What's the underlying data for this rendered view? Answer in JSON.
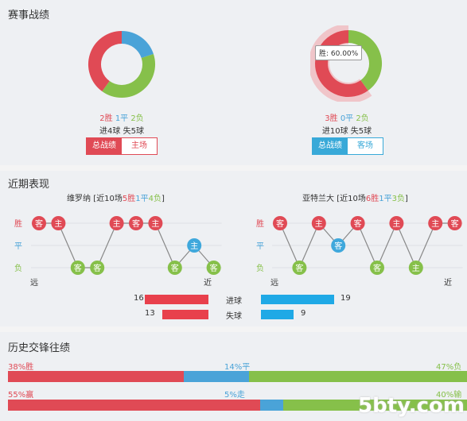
{
  "record": {
    "title": "赛事战绩",
    "home": {
      "wins_text": "2胜",
      "draws_text": "1平",
      "losses_text": "2负",
      "goals_text": "进4球 失5球",
      "tabs": [
        "总战绩",
        "主场"
      ],
      "win": 2,
      "draw": 1,
      "loss": 2
    },
    "away": {
      "wins_text": "3胜",
      "draws_text": "0平",
      "losses_text": "2负",
      "goals_text": "进10球 失5球",
      "tabs": [
        "总战绩",
        "客场"
      ],
      "win": 3,
      "draw": 0,
      "loss": 2,
      "tooltip": "胜: 60.00%"
    },
    "colors": {
      "win": "#e04a55",
      "draw": "#4aa3d8",
      "loss": "#86c04a"
    }
  },
  "recent": {
    "title": "近期表现",
    "home": {
      "team": "维罗纳",
      "summary_prefix": "[近10场",
      "w": "5胜",
      "d": "1平",
      "l": "4负",
      "summary_suffix": "]",
      "results": [
        "W",
        "W",
        "L",
        "L",
        "W",
        "W",
        "W",
        "L",
        "D",
        "L"
      ],
      "badges": [
        "客",
        "主",
        "客",
        "客",
        "主",
        "客",
        "主",
        "客",
        "主",
        "客"
      ]
    },
    "away": {
      "team": "亚特兰大",
      "summary_prefix": "[近10场",
      "w": "6胜",
      "d": "1平",
      "l": "3负",
      "summary_suffix": "]",
      "results": [
        "W",
        "L",
        "W",
        "D",
        "W",
        "L",
        "W",
        "L",
        "W",
        "W"
      ],
      "badges": [
        "客",
        "客",
        "主",
        "客",
        "客",
        "客",
        "主",
        "主",
        "主",
        "客"
      ]
    },
    "axis": {
      "win": "胜",
      "draw": "平",
      "loss": "负",
      "far": "远",
      "near": "近"
    },
    "stats": [
      {
        "label": "进球",
        "home": "16",
        "away": "19",
        "home_val": 16,
        "away_val": 19
      },
      {
        "label": "失球",
        "home": "13",
        "away": "9",
        "home_val": 13,
        "away_val": 9
      }
    ]
  },
  "history": {
    "title": "历史交锋往绩",
    "row1": {
      "left": "38%胜",
      "mid": "14%平",
      "right": "47%负",
      "a": 38,
      "b": 14,
      "c": 47
    },
    "row2": {
      "left": "55%赢",
      "mid": "5%走",
      "right": "40%输",
      "a": 55,
      "b": 5,
      "c": 40
    },
    "watermark": "5bty.com"
  }
}
